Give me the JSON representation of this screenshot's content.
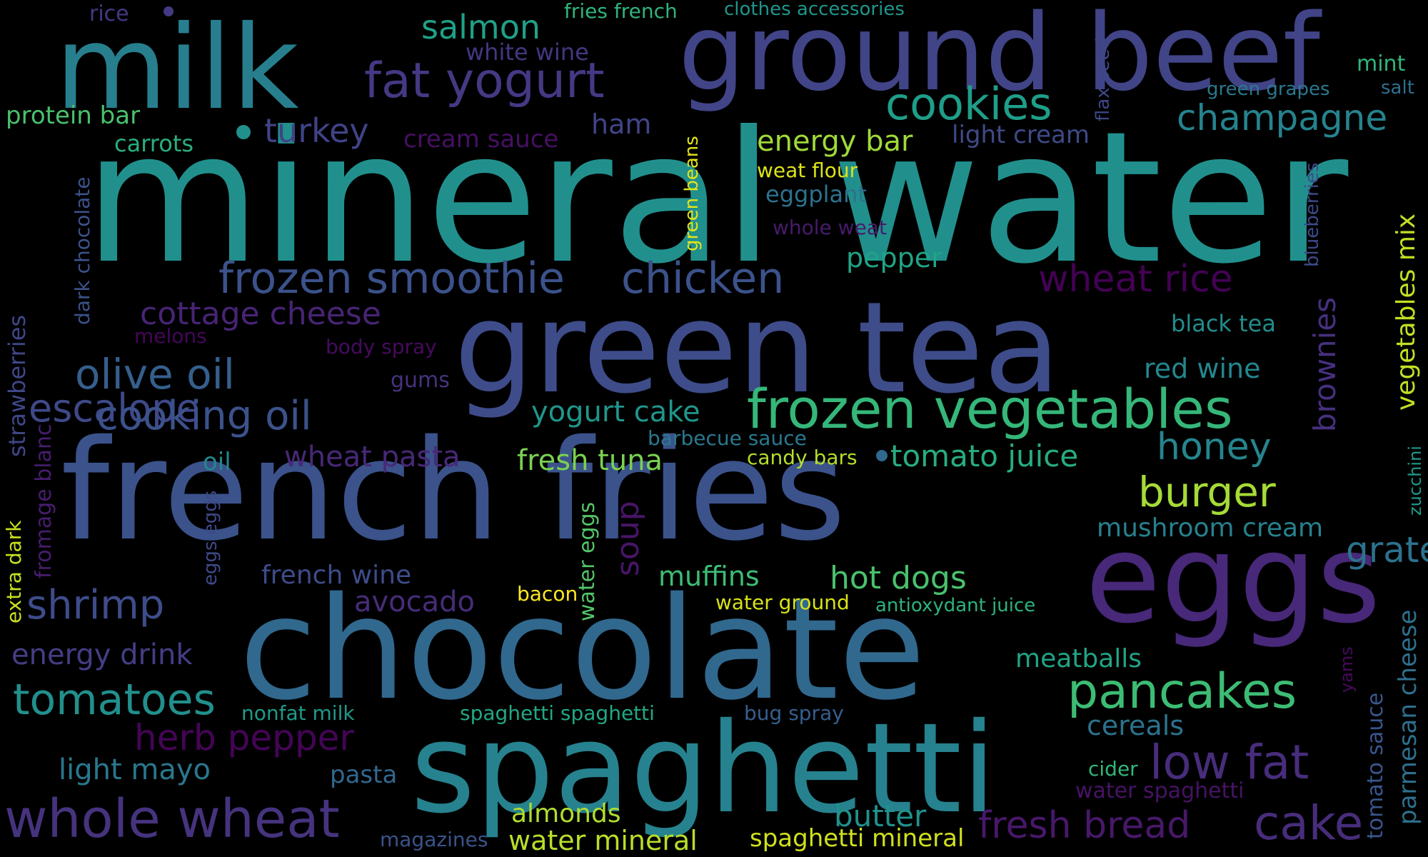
{
  "words": [
    {
      "text": "mineral water",
      "color": "#21908d"
    },
    {
      "text": "french fries",
      "color": "#3b528b"
    },
    {
      "text": "chocolate",
      "color": "#31688e"
    },
    {
      "text": "green tea",
      "color": "#3e4c8a"
    },
    {
      "text": "spaghetti",
      "color": "#26828e"
    },
    {
      "text": "eggs",
      "color": "#482878"
    },
    {
      "text": "milk",
      "color": "#277f8e"
    },
    {
      "text": "ground beef",
      "color": "#414487"
    },
    {
      "text": "frozen vegetables",
      "color": "#35b779"
    },
    {
      "text": "frozen smoothie",
      "color": "#3b528b"
    },
    {
      "text": "chicken",
      "color": "#3b528b"
    },
    {
      "text": "fat yogurt",
      "color": "#443983"
    },
    {
      "text": "cookies",
      "color": "#1f9e89"
    },
    {
      "text": "champagne",
      "color": "#25838e"
    },
    {
      "text": "pancakes",
      "color": "#3dbc74"
    },
    {
      "text": "whole wheat",
      "color": "#46337e"
    },
    {
      "text": "low fat",
      "color": "#472d7b"
    },
    {
      "text": "cake",
      "color": "#472d7b"
    },
    {
      "text": "fresh bread",
      "color": "#48186a"
    },
    {
      "text": "burger",
      "color": "#a5db36"
    },
    {
      "text": "escalope",
      "color": "#3e4989"
    },
    {
      "text": "olive oil",
      "color": "#355f8d"
    },
    {
      "text": "cooking oil",
      "color": "#3b528b"
    },
    {
      "text": "shrimp",
      "color": "#3e4c8a"
    },
    {
      "text": "tomatoes",
      "color": "#21908d"
    },
    {
      "text": "honey",
      "color": "#25858e"
    },
    {
      "text": "grated cheese",
      "color": "#2c728e"
    },
    {
      "text": "wheat rice",
      "color": "#440154"
    },
    {
      "text": "turkey",
      "color": "#404387"
    },
    {
      "text": "salmon",
      "color": "#1fa187"
    },
    {
      "text": "protein bar",
      "color": "#4ac16d"
    },
    {
      "text": "carrots",
      "color": "#29af7f"
    },
    {
      "text": "ham",
      "color": "#414487"
    },
    {
      "text": "cream sauce",
      "color": "#471063"
    },
    {
      "text": "energy bar",
      "color": "#a0da39"
    },
    {
      "text": "light cream",
      "color": "#3e4a89"
    },
    {
      "text": "white wine",
      "color": "#453781"
    },
    {
      "text": "fries french",
      "color": "#2fb47c"
    },
    {
      "text": "clothes accessories",
      "color": "#1f958b"
    },
    {
      "text": "rice",
      "color": "#443a83"
    },
    {
      "text": "mint",
      "color": "#31b57b"
    },
    {
      "text": "salt",
      "color": "#2e6f8e"
    },
    {
      "text": "green grapes",
      "color": "#2a788e"
    },
    {
      "text": "flax seed",
      "color": "#3f4788"
    },
    {
      "text": "weat flour",
      "color": "#dde318"
    },
    {
      "text": "eggplant",
      "color": "#2c728e"
    },
    {
      "text": "whole weat",
      "color": "#481a6c"
    },
    {
      "text": "green beans",
      "color": "#e3e418"
    },
    {
      "text": "pepper",
      "color": "#20a386"
    },
    {
      "text": "cottage cheese",
      "color": "#482475"
    },
    {
      "text": "dark chocolate",
      "color": "#3b528b"
    },
    {
      "text": "melons",
      "color": "#450559"
    },
    {
      "text": "body spray",
      "color": "#460b5e"
    },
    {
      "text": "strawberries",
      "color": "#3f4788"
    },
    {
      "text": "gums",
      "color": "#46327e"
    },
    {
      "text": "yogurt cake",
      "color": "#1f968b"
    },
    {
      "text": "black tea",
      "color": "#228d8d"
    },
    {
      "text": "red wine",
      "color": "#24868e"
    },
    {
      "text": "blueberries",
      "color": "#3e4a89"
    },
    {
      "text": "vegetables mix",
      "color": "#c2df23"
    },
    {
      "text": "brownies",
      "color": "#46307e"
    },
    {
      "text": "zucchini",
      "color": "#1f998a"
    },
    {
      "text": "barbecue sauce",
      "color": "#2a788e"
    },
    {
      "text": "fresh tuna",
      "color": "#7ad151"
    },
    {
      "text": "candy bars",
      "color": "#b5de2b"
    },
    {
      "text": "tomato juice",
      "color": "#27ad81"
    },
    {
      "text": "wheat pasta",
      "color": "#482878"
    },
    {
      "text": "oil",
      "color": "#23888e"
    },
    {
      "text": "fromage blanc",
      "color": "#481d6f"
    },
    {
      "text": "extra dark",
      "color": "#c8e020"
    },
    {
      "text": "eggs eggs",
      "color": "#3f4889"
    },
    {
      "text": "soup",
      "color": "#481567"
    },
    {
      "text": "water eggs",
      "color": "#54c568"
    },
    {
      "text": "mushroom cream",
      "color": "#26818e"
    },
    {
      "text": "muffins",
      "color": "#3dbc74"
    },
    {
      "text": "hot dogs",
      "color": "#4ac16d"
    },
    {
      "text": "french wine",
      "color": "#3e4c8a"
    },
    {
      "text": "avocado",
      "color": "#472c7a"
    },
    {
      "text": "bacon",
      "color": "#fde725"
    },
    {
      "text": "water ground",
      "color": "#d8e219"
    },
    {
      "text": "antioxydant juice",
      "color": "#2db27d"
    },
    {
      "text": "energy drink",
      "color": "#433e85"
    },
    {
      "text": "meatballs",
      "color": "#20a486"
    },
    {
      "text": "parmesan cheese",
      "color": "#2d708e"
    },
    {
      "text": "yams",
      "color": "#460a5d"
    },
    {
      "text": "tomato sauce",
      "color": "#39568c"
    },
    {
      "text": "nonfat milk",
      "color": "#1f9a8a"
    },
    {
      "text": "spaghetti spaghetti",
      "color": "#22a884"
    },
    {
      "text": "bug spray",
      "color": "#355f8d"
    },
    {
      "text": "cereals",
      "color": "#2c728e"
    },
    {
      "text": "herb pepper",
      "color": "#450457"
    },
    {
      "text": "light mayo",
      "color": "#2a778e"
    },
    {
      "text": "pasta",
      "color": "#31688e"
    },
    {
      "text": "cider",
      "color": "#32b67a"
    },
    {
      "text": "water spaghetti",
      "color": "#471365"
    },
    {
      "text": "almonds",
      "color": "#b0dd2f"
    },
    {
      "text": "butter",
      "color": "#21918c"
    },
    {
      "text": "magazines",
      "color": "#3a538b"
    },
    {
      "text": "water mineral",
      "color": "#b8de29"
    },
    {
      "text": "spaghetti mineral",
      "color": "#d0e11c"
    }
  ]
}
